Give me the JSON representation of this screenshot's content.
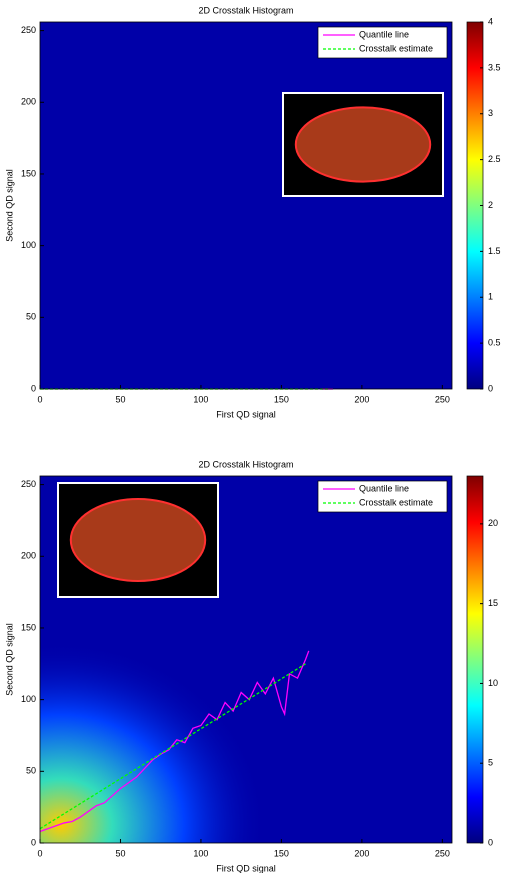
{
  "chart_data": [
    {
      "type": "heatmap",
      "title": "2D Crosstalk Histogram",
      "x_label": "First QD signal",
      "y_label": "Second QD signal",
      "xlim": [
        0,
        256
      ],
      "xticks": [
        0,
        50,
        100,
        150,
        200,
        250
      ],
      "ylim": [
        0,
        256
      ],
      "yticks": [
        0,
        50,
        100,
        150,
        200,
        250
      ],
      "colormap": "jet",
      "clim": [
        0,
        4
      ],
      "cticks": [
        0,
        0.5,
        1,
        1.5,
        2,
        2.5,
        3,
        3.5,
        4
      ],
      "legend": "upper right",
      "series": [
        {
          "name": "Quantile line",
          "color": "#ff00ff",
          "line_style": "solid",
          "x": [
            175,
            182
          ],
          "values": [
            0,
            0
          ]
        },
        {
          "name": "Crosstalk estimate",
          "color": "#00ff00",
          "line_style": "dashed",
          "x": [
            0,
            180
          ],
          "values": [
            0,
            0
          ]
        }
      ]
    },
    {
      "type": "heatmap",
      "title": "2D Crosstalk Histogram",
      "x_label": "First QD signal",
      "y_label": "Second QD signal",
      "xlim": [
        0,
        256
      ],
      "xticks": [
        0,
        50,
        100,
        150,
        200,
        250
      ],
      "ylim": [
        0,
        256
      ],
      "yticks": [
        0,
        50,
        100,
        150,
        200,
        250
      ],
      "colormap": "jet",
      "clim": [
        0,
        23
      ],
      "cticks": [
        0,
        5,
        10,
        15,
        20
      ],
      "legend": "upper right",
      "series": [
        {
          "name": "Quantile line",
          "color": "#ff00ff",
          "line_style": "solid",
          "x": [
            0,
            5,
            10,
            15,
            20,
            25,
            30,
            35,
            40,
            45,
            50,
            55,
            60,
            65,
            70,
            75,
            80,
            85,
            90,
            95,
            100,
            105,
            110,
            115,
            120,
            125,
            130,
            135,
            140,
            145,
            150,
            152,
            155,
            160,
            165,
            167
          ],
          "values": [
            8,
            10,
            12,
            14,
            15,
            18,
            22,
            26,
            28,
            33,
            38,
            42,
            46,
            52,
            58,
            62,
            65,
            72,
            70,
            80,
            82,
            90,
            86,
            98,
            92,
            105,
            100,
            112,
            104,
            115,
            95,
            90,
            118,
            115,
            128,
            134
          ]
        },
        {
          "name": "Crosstalk estimate",
          "color": "#00ff00",
          "line_style": "dashed",
          "x": [
            0,
            165
          ],
          "values": [
            10,
            125
          ]
        }
      ]
    }
  ]
}
